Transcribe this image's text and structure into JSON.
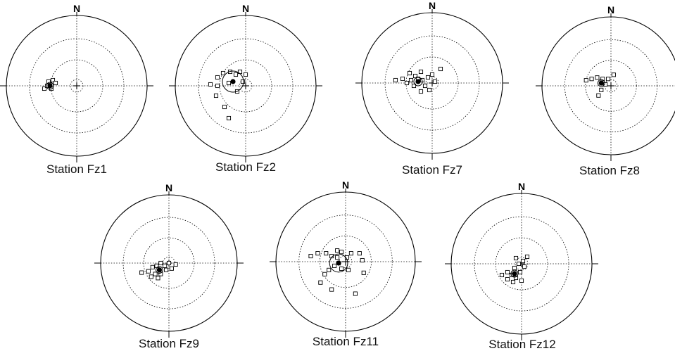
{
  "north_label": "N",
  "colors": {
    "ink": "#000000",
    "background": "#ffffff"
  },
  "stations": [
    {
      "id": "fz1",
      "caption": "Station Fz1",
      "poles": [
        [
          0.27,
          0.52
        ],
        [
          0.29,
          0.5
        ],
        [
          0.31,
          0.49
        ],
        [
          0.33,
          0.46
        ],
        [
          0.3,
          0.47
        ],
        [
          0.32,
          0.52
        ],
        [
          0.35,
          0.48
        ]
      ],
      "mean": [
        0.31,
        0.5
      ],
      "cone": 0.05
    },
    {
      "id": "fz2",
      "caption": "Station Fz2",
      "poles": [
        [
          0.3,
          0.44
        ],
        [
          0.34,
          0.41
        ],
        [
          0.39,
          0.4
        ],
        [
          0.43,
          0.42
        ],
        [
          0.46,
          0.4
        ],
        [
          0.5,
          0.42
        ],
        [
          0.38,
          0.48
        ],
        [
          0.48,
          0.47
        ],
        [
          0.25,
          0.49
        ],
        [
          0.3,
          0.5
        ],
        [
          0.44,
          0.54
        ],
        [
          0.35,
          0.65
        ],
        [
          0.38,
          0.73
        ],
        [
          0.29,
          0.57
        ]
      ],
      "mean": [
        0.41,
        0.47
      ],
      "cone": 0.15
    },
    {
      "id": "fz7",
      "caption": "Station Fz7",
      "poles": [
        [
          0.32,
          0.5
        ],
        [
          0.35,
          0.48
        ],
        [
          0.38,
          0.45
        ],
        [
          0.4,
          0.47
        ],
        [
          0.43,
          0.48
        ],
        [
          0.47,
          0.46
        ],
        [
          0.5,
          0.44
        ],
        [
          0.42,
          0.42
        ],
        [
          0.37,
          0.52
        ],
        [
          0.45,
          0.52
        ],
        [
          0.29,
          0.47
        ],
        [
          0.52,
          0.49
        ],
        [
          0.42,
          0.56
        ],
        [
          0.56,
          0.4
        ],
        [
          0.34,
          0.43
        ],
        [
          0.24,
          0.48
        ],
        [
          0.48,
          0.55
        ]
      ],
      "mean": [
        0.4,
        0.49
      ],
      "cone": 0.06
    },
    {
      "id": "fz8",
      "caption": "Station Fz8",
      "poles": [
        [
          0.32,
          0.46
        ],
        [
          0.36,
          0.45
        ],
        [
          0.4,
          0.44
        ],
        [
          0.44,
          0.45
        ],
        [
          0.48,
          0.45
        ],
        [
          0.52,
          0.42
        ],
        [
          0.46,
          0.49
        ],
        [
          0.43,
          0.53
        ],
        [
          0.41,
          0.57
        ]
      ],
      "mean": [
        0.43,
        0.48
      ],
      "cone": 0.05
    },
    {
      "id": "fz9",
      "caption": "Station Fz9",
      "poles": [
        [
          0.35,
          0.56
        ],
        [
          0.38,
          0.53
        ],
        [
          0.41,
          0.52
        ],
        [
          0.44,
          0.5
        ],
        [
          0.47,
          0.52
        ],
        [
          0.4,
          0.58
        ],
        [
          0.44,
          0.58
        ],
        [
          0.48,
          0.55
        ],
        [
          0.52,
          0.54
        ],
        [
          0.55,
          0.51
        ],
        [
          0.37,
          0.6
        ],
        [
          0.42,
          0.61
        ],
        [
          0.5,
          0.5
        ],
        [
          0.3,
          0.57
        ]
      ],
      "mean": [
        0.43,
        0.55
      ],
      "cone": 0.05
    },
    {
      "id": "fz11",
      "caption": "Station Fz11",
      "poles": [
        [
          0.25,
          0.46
        ],
        [
          0.3,
          0.44
        ],
        [
          0.36,
          0.44
        ],
        [
          0.4,
          0.46
        ],
        [
          0.44,
          0.47
        ],
        [
          0.47,
          0.43
        ],
        [
          0.51,
          0.47
        ],
        [
          0.54,
          0.44
        ],
        [
          0.6,
          0.44
        ],
        [
          0.42,
          0.53
        ],
        [
          0.47,
          0.55
        ],
        [
          0.38,
          0.56
        ],
        [
          0.52,
          0.56
        ],
        [
          0.62,
          0.49
        ],
        [
          0.63,
          0.58
        ],
        [
          0.32,
          0.65
        ],
        [
          0.4,
          0.7
        ],
        [
          0.57,
          0.73
        ],
        [
          0.44,
          0.42
        ],
        [
          0.35,
          0.59
        ]
      ],
      "mean": [
        0.45,
        0.51
      ],
      "cone": 0.13
    },
    {
      "id": "fz12",
      "caption": "Station Fz12",
      "poles": [
        [
          0.36,
          0.58
        ],
        [
          0.4,
          0.56
        ],
        [
          0.43,
          0.58
        ],
        [
          0.45,
          0.53
        ],
        [
          0.48,
          0.5
        ],
        [
          0.51,
          0.48
        ],
        [
          0.46,
          0.6
        ],
        [
          0.49,
          0.56
        ],
        [
          0.4,
          0.61
        ],
        [
          0.52,
          0.52
        ],
        [
          0.44,
          0.63
        ],
        [
          0.5,
          0.62
        ],
        [
          0.54,
          0.45
        ],
        [
          0.46,
          0.46
        ]
      ],
      "mean": [
        0.45,
        0.57
      ],
      "cone": 0.05
    }
  ]
}
